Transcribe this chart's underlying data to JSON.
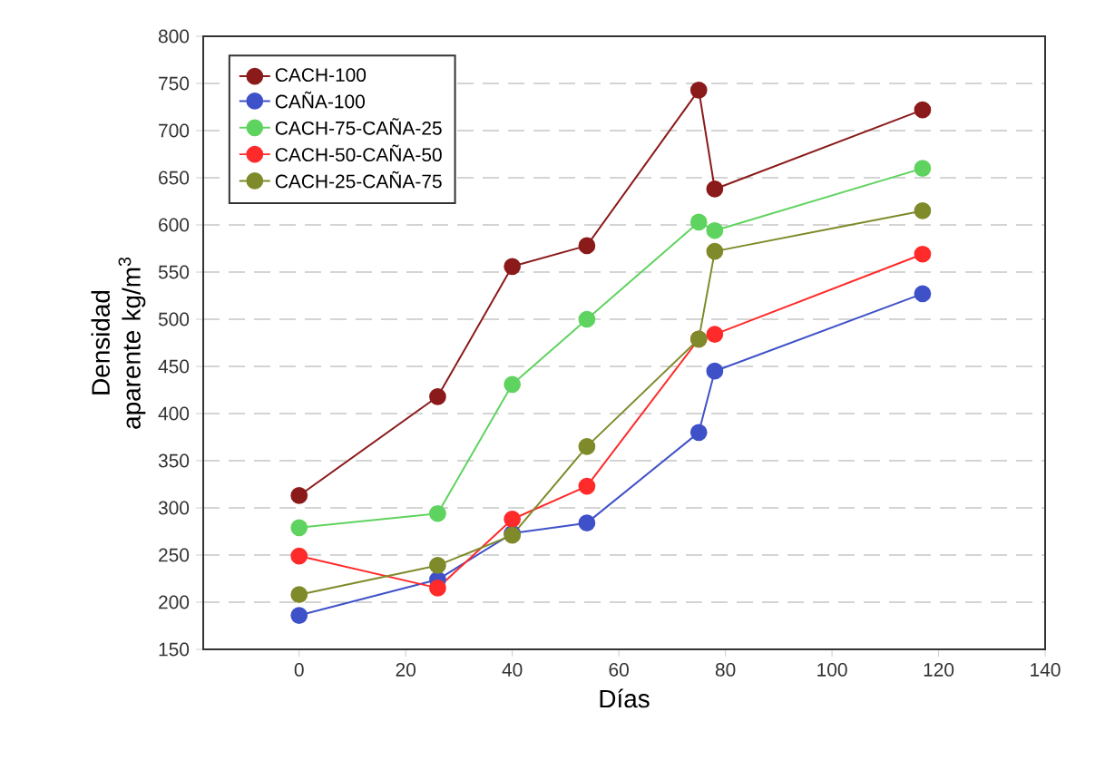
{
  "chart_data": {
    "type": "line",
    "xlabel": "Días",
    "ylabel": "Densidad aparente kg/m$^{3}$",
    "xlim": [
      -18,
      140
    ],
    "xticks": [
      0,
      20,
      40,
      60,
      80,
      100,
      120,
      140
    ],
    "ylim": [
      150,
      800
    ],
    "yticks": [
      150,
      200,
      250,
      300,
      350,
      400,
      450,
      500,
      550,
      600,
      650,
      700,
      750,
      800
    ],
    "grid": "y",
    "legend": "top left",
    "marker": "circle",
    "line_style": "solid",
    "series": [
      {
        "name": "CACH-100",
        "color": "#8b1a1a",
        "x": [
          0,
          26,
          40,
          54,
          75,
          78,
          117
        ],
        "values": [
          313,
          418,
          556,
          578,
          743,
          638,
          722
        ]
      },
      {
        "name": "CAÑA-100",
        "color": "#3f51c8",
        "x": [
          0,
          26,
          40,
          54,
          75,
          78,
          117
        ],
        "values": [
          186,
          224,
          273,
          284,
          380,
          445,
          527
        ]
      },
      {
        "name": "CACH-75-CAÑA-25",
        "color": "#5fd35f",
        "x": [
          0,
          26,
          40,
          54,
          75,
          78,
          117
        ],
        "values": [
          279,
          294,
          431,
          500,
          603,
          594,
          660
        ]
      },
      {
        "name": "CACH-50-CAÑA-50",
        "color": "#ff2a2a",
        "x": [
          0,
          26,
          40,
          54,
          75,
          78,
          117
        ],
        "values": [
          249,
          215,
          288,
          323,
          479,
          484,
          569
        ]
      },
      {
        "name": "CACH-25-CAÑA-75",
        "color": "#7f8a2a",
        "x": [
          0,
          26,
          40,
          54,
          75,
          78,
          117
        ],
        "values": [
          208,
          239,
          271,
          365,
          479,
          572,
          615
        ]
      }
    ]
  }
}
